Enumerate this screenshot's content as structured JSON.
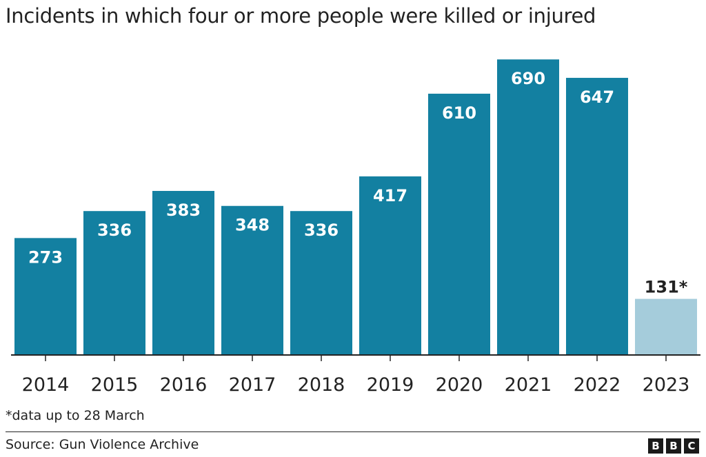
{
  "chart_data": {
    "type": "bar",
    "title": "Incidents in which four or more people were killed or injured",
    "categories": [
      "2014",
      "2015",
      "2016",
      "2017",
      "2018",
      "2019",
      "2020",
      "2021",
      "2022",
      "2023"
    ],
    "values": [
      273,
      336,
      383,
      348,
      336,
      417,
      610,
      690,
      647,
      131
    ],
    "labels": [
      "273",
      "336",
      "383",
      "348",
      "336",
      "417",
      "610",
      "690",
      "647",
      "131*"
    ],
    "highlight": [
      "normal",
      "normal",
      "normal",
      "normal",
      "normal",
      "normal",
      "normal",
      "normal",
      "normal",
      "partial"
    ],
    "ylim": [
      0,
      700
    ],
    "grid": false,
    "colors": {
      "bar": "#1380a1",
      "bar_partial": "#a5ccdb",
      "label_inside": "#ffffff",
      "label_outside": "#222222"
    }
  },
  "footnote": "*data up to 28 March",
  "source": "Source: Gun Violence Archive",
  "logo": [
    "B",
    "B",
    "C"
  ]
}
